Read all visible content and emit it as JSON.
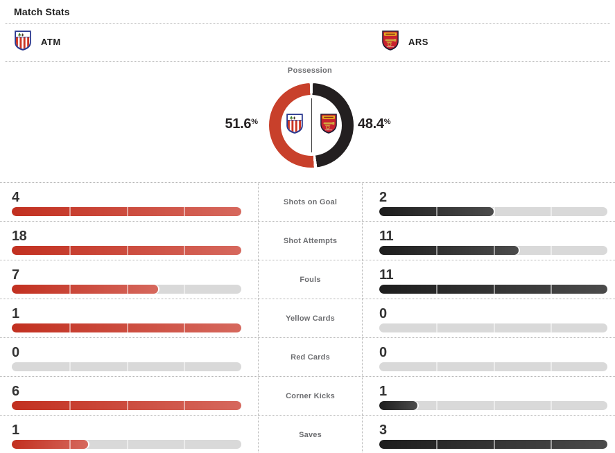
{
  "title": "Match Stats",
  "teams": {
    "home": {
      "abbr": "ATM"
    },
    "away": {
      "abbr": "ARS"
    }
  },
  "possession": {
    "label": "Possession",
    "home_pct": "51.6",
    "away_pct": "48.4",
    "unit": "%"
  },
  "stats": [
    {
      "label": "Shots on Goal",
      "home": 4,
      "away": 2
    },
    {
      "label": "Shot Attempts",
      "home": 18,
      "away": 11
    },
    {
      "label": "Fouls",
      "home": 7,
      "away": 11
    },
    {
      "label": "Yellow Cards",
      "home": 1,
      "away": 0
    },
    {
      "label": "Red Cards",
      "home": 0,
      "away": 0
    },
    {
      "label": "Corner Kicks",
      "home": 6,
      "away": 1
    },
    {
      "label": "Saves",
      "home": 1,
      "away": 3
    }
  ],
  "colors": {
    "home_fill_start": "#c23020",
    "home_fill_end": "#d6685d",
    "away_fill_start": "#1d1d1d",
    "away_fill_end": "#4b4b4b",
    "track": "#d9d9d9",
    "donut_home": "#c8402b",
    "donut_away": "#231f20"
  }
}
